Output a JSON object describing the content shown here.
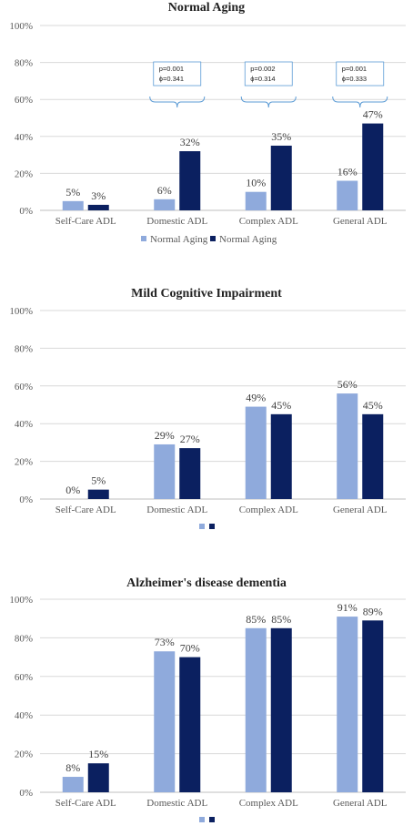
{
  "colors": {
    "light": "#8faadc",
    "dark": "#0b2060",
    "bracket": "#5b9bd5"
  },
  "chart_data": [
    {
      "type": "bar",
      "title": "Normal Aging",
      "categories": [
        "Self-Care ADL",
        "Domestic ADL",
        "Complex ADL",
        "General ADL"
      ],
      "series": [
        {
          "name": "Normal Aging",
          "values": [
            5,
            6,
            10,
            16
          ],
          "labels": [
            "5%",
            "6%",
            "10%",
            "16%"
          ]
        },
        {
          "name": "Normal Aging",
          "values": [
            3,
            32,
            35,
            47
          ],
          "labels": [
            "3%",
            "32%",
            "35%",
            "47%"
          ]
        }
      ],
      "yticks": [
        "0%",
        "20%",
        "40%",
        "60%",
        "80%",
        "100%"
      ],
      "ylim": [
        0,
        100
      ],
      "legend": "bottom",
      "annotations": [
        {
          "category_index": 1,
          "p": "p=0.001",
          "phi": "ϕ=0.341"
        },
        {
          "category_index": 2,
          "p": "p=0.002",
          "phi": "ϕ=0.314"
        },
        {
          "category_index": 3,
          "p": "p=0.001",
          "phi": "ϕ=0.333"
        }
      ]
    },
    {
      "type": "bar",
      "title": "Mild Cognitive Impairment",
      "categories": [
        "Self-Care ADL",
        "Domestic ADL",
        "Complex ADL",
        "General ADL"
      ],
      "series": [
        {
          "name": "",
          "values": [
            0,
            29,
            49,
            56
          ],
          "labels": [
            "0%",
            "29%",
            "49%",
            "56%"
          ]
        },
        {
          "name": "",
          "values": [
            5,
            27,
            45,
            45
          ],
          "labels": [
            "5%",
            "27%",
            "45%",
            "45%"
          ]
        }
      ],
      "yticks": [
        "0%",
        "20%",
        "40%",
        "60%",
        "80%",
        "100%"
      ],
      "ylim": [
        0,
        100
      ],
      "legend": "bottom",
      "annotations": []
    },
    {
      "type": "bar",
      "title": "Alzheimer's disease dementia",
      "categories": [
        "Self-Care ADL",
        "Domestic ADL",
        "Complex ADL",
        "General ADL"
      ],
      "series": [
        {
          "name": "",
          "values": [
            8,
            73,
            85,
            91
          ],
          "labels": [
            "8%",
            "73%",
            "85%",
            "91%"
          ]
        },
        {
          "name": "",
          "values": [
            15,
            70,
            85,
            89
          ],
          "labels": [
            "15%",
            "70%",
            "85%",
            "89%"
          ]
        }
      ],
      "yticks": [
        "0%",
        "20%",
        "40%",
        "60%",
        "80%",
        "100%"
      ],
      "ylim": [
        0,
        100
      ],
      "legend": "bottom",
      "annotations": []
    }
  ]
}
